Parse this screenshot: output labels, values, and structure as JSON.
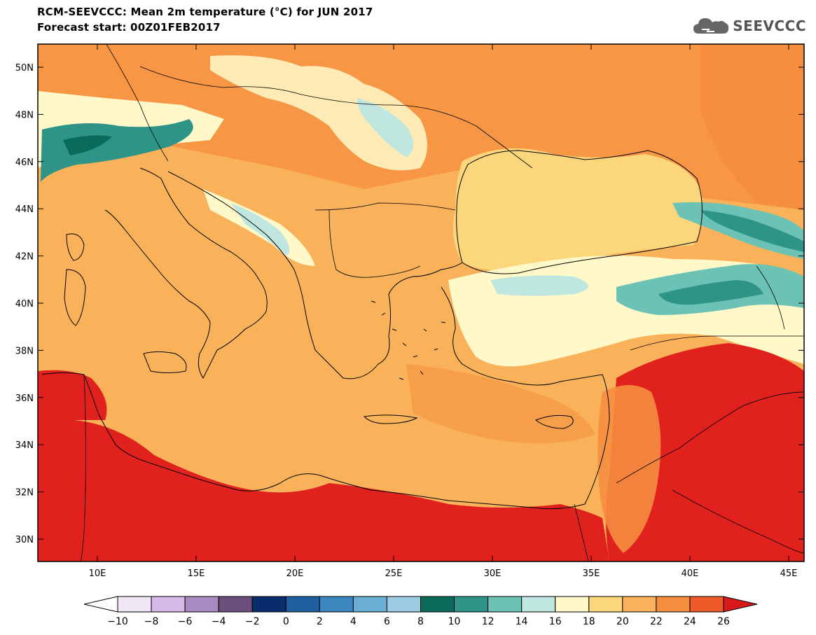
{
  "title_line1": "RCM-SEEVCCC: Mean 2m temperature (°C) for JUN 2017",
  "title_line2": "Forecast start: 00Z01FEB2017",
  "logo_text": "SEEVCCC",
  "lon_ticks": [
    "10E",
    "15E",
    "20E",
    "25E",
    "30E",
    "35E",
    "40E",
    "45E"
  ],
  "lat_ticks": [
    "50N",
    "48N",
    "46N",
    "44N",
    "42N",
    "40N",
    "38N",
    "36N",
    "34N",
    "32N",
    "30N"
  ],
  "colorbar": {
    "labels": [
      "−10",
      "−8",
      "−6",
      "−4",
      "−2",
      "0",
      "2",
      "4",
      "6",
      "8",
      "10",
      "12",
      "14",
      "16",
      "18",
      "20",
      "22",
      "24",
      "26"
    ],
    "colors": [
      "#efe6f5",
      "#d6b9e6",
      "#a98bc4",
      "#6b4f7a",
      "#0b2c6b",
      "#1f5fa0",
      "#3a86bf",
      "#6aaed6",
      "#9ccbe4",
      "#0b6b5a",
      "#2e9488",
      "#6cc2b5",
      "#c0e6e0",
      "#fff8c8",
      "#fcd67a",
      "#f9b259",
      "#f58e3f",
      "#ef5a2b"
    ],
    "low_color": "#ffffff",
    "high_color": "#d7191c"
  },
  "colors": {
    "sea_base": "#f9b259",
    "land_warm": "#f58e3f",
    "hot": "#e0211e",
    "cool": "#fff8c8",
    "mountain": "#2e9488",
    "black_sea": "#fcd67a"
  }
}
